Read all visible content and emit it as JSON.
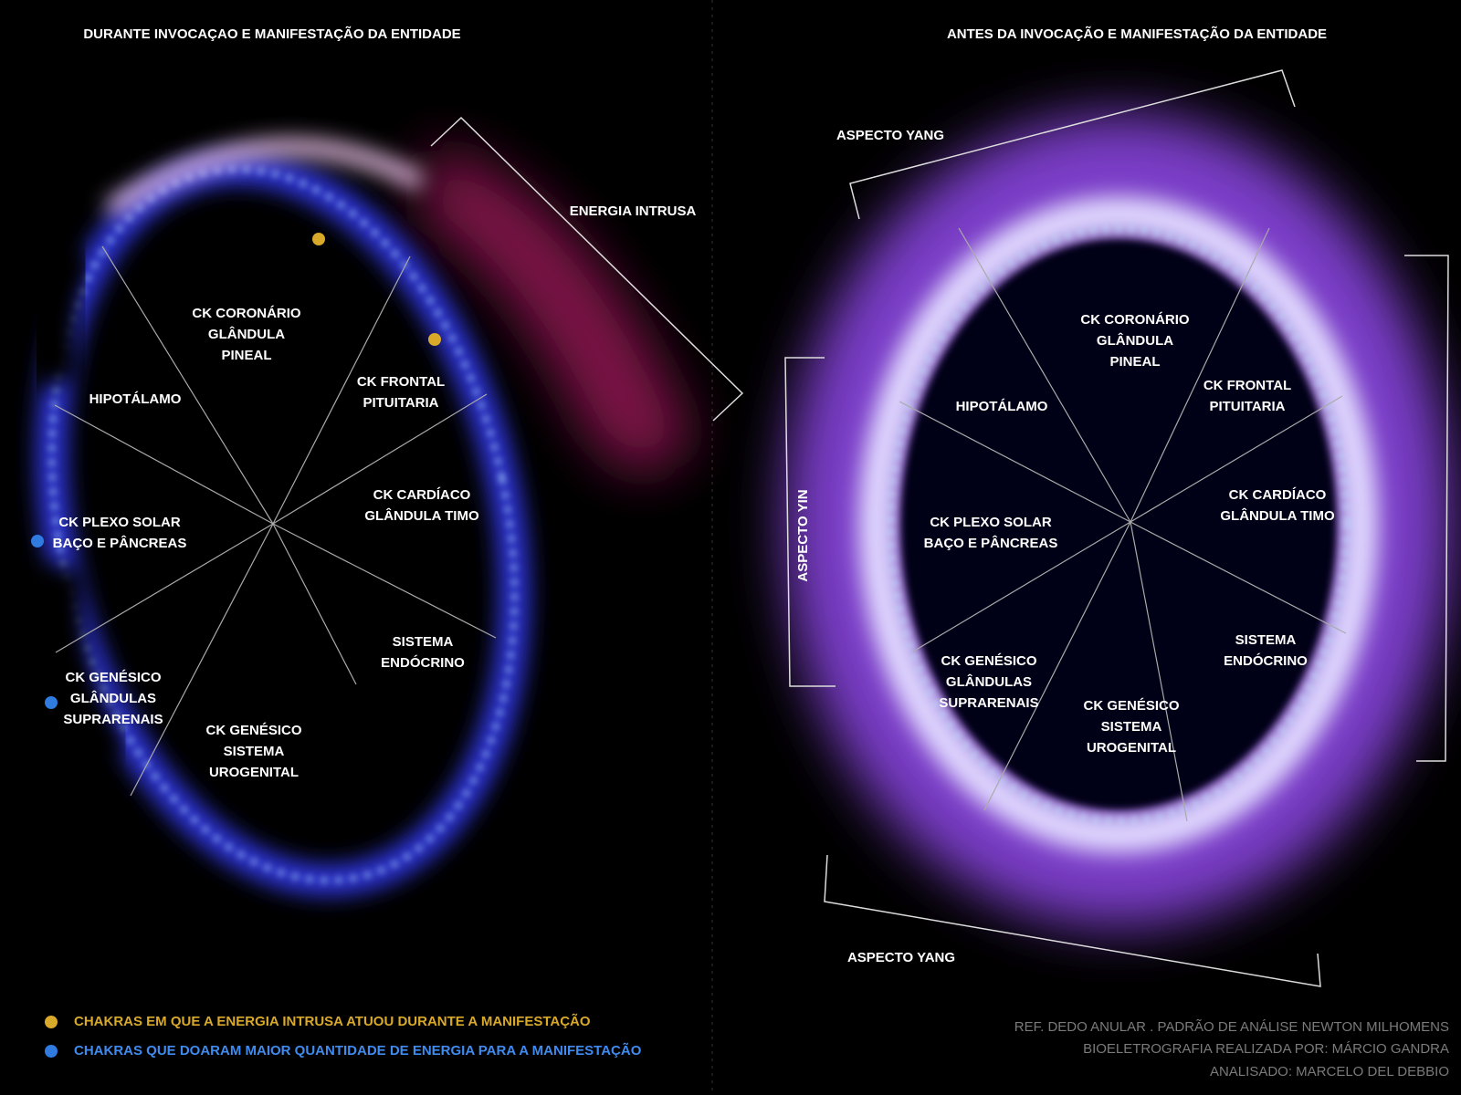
{
  "left": {
    "title": "DURANTE INVOCAÇAO E MANIFESTAÇÃO DA ENTIDADE",
    "annotation": "ENERGIA INTRUSA",
    "sectors": [
      [
        "CK CORONÁRIO",
        "GLÂNDULA",
        "PINEAL"
      ],
      [
        "CK FRONTAL",
        "PITUITARIA"
      ],
      [
        "CK CARDÍACO",
        "GLÂNDULA TIMO"
      ],
      [
        "SISTEMA",
        "ENDÓCRINO"
      ],
      [
        "CK GENÉSICO",
        "SISTEMA",
        "UROGENITAL"
      ],
      [
        "CK GENÉSICO",
        "GLÂNDULAS",
        "SUPRARENAIS"
      ],
      [
        "CK PLEXO SOLAR",
        "BAÇO E PÂNCREAS"
      ],
      [
        "HIPOTÁLAMO"
      ]
    ]
  },
  "right": {
    "title": "ANTES DA INVOCAÇÃO E MANIFESTAÇÃO DA ENTIDADE",
    "aspects": [
      "ASPECTO YANG",
      "ASPECTO YIN",
      "ASPECTO YANG"
    ],
    "sectors": [
      [
        "CK CORONÁRIO",
        "GLÂNDULA",
        "PINEAL"
      ],
      [
        "CK FRONTAL",
        "PITUITARIA"
      ],
      [
        "CK CARDÍACO",
        "GLÂNDULA TIMO"
      ],
      [
        "SISTEMA",
        "ENDÓCRINO"
      ],
      [
        "CK GENÉSICO",
        "SISTEMA",
        "UROGENITAL"
      ],
      [
        "CK GENÉSICO",
        "GLÂNDULAS",
        "SUPRARENAIS"
      ],
      [
        "CK PLEXO SOLAR",
        "BAÇO E PÂNCREAS"
      ],
      [
        "HIPOTÁLAMO"
      ]
    ]
  },
  "legend": [
    "CHAKRAS EM QUE A ENERGIA INTRUSA ATUOU DURANTE A MANIFESTAÇÃO",
    "CHAKRAS QUE DOARAM MAIOR QUANTIDADE DE ENERGIA PARA A MANIFESTAÇÃO"
  ],
  "credits": [
    "REF. DEDO ANULAR . PADRÃO DE ANÁLISE NEWTON MILHOMENS",
    "BIOELETROGRAFIA REALIZADA POR: MÁRCIO GANDRA",
    "ANALISADO: MARCELO DEL DEBBIO"
  ]
}
